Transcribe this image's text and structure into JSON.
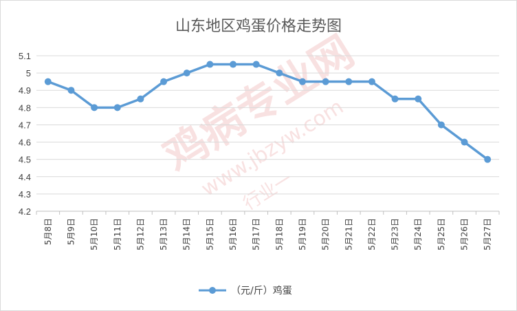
{
  "chart_data": {
    "type": "line",
    "title": "山东地区鸡蛋价格走势图",
    "categories": [
      "5月8日",
      "5月9日",
      "5月10日",
      "5月11日",
      "5月12日",
      "5月13日",
      "5月14日",
      "5月15日",
      "5月16日",
      "5月17日",
      "5月18日",
      "5月19日",
      "5月20日",
      "5月21日",
      "5月22日",
      "5月23日",
      "5月24日",
      "5月25日",
      "5月26日",
      "5月27日"
    ],
    "series": [
      {
        "name": "（元/斤）鸡蛋",
        "values": [
          4.95,
          4.9,
          4.8,
          4.8,
          4.85,
          4.95,
          5.0,
          5.05,
          5.05,
          5.05,
          5.0,
          4.95,
          4.95,
          4.95,
          4.95,
          4.85,
          4.85,
          4.7,
          4.6,
          4.5
        ],
        "color": "#5b9bd5"
      }
    ],
    "ylim": [
      4.2,
      5.1
    ],
    "yticks": [
      4.2,
      4.3,
      4.4,
      4.5,
      4.6,
      4.7,
      4.8,
      4.9,
      5.0,
      5.1
    ],
    "ytick_labels": [
      "4.2",
      "4.3",
      "4.4",
      "4.5",
      "4.6",
      "4.7",
      "4.8",
      "4.9",
      "5",
      "5.1"
    ],
    "grid": true,
    "legend": "bottom"
  },
  "watermark": {
    "name": "鸡病专业网",
    "url": "www.jbzyw.com",
    "slogan": "行业一"
  },
  "colors": {
    "line": "#5b9bd5",
    "grid": "#d9d9d9",
    "text": "#404040",
    "title": "#595959"
  }
}
